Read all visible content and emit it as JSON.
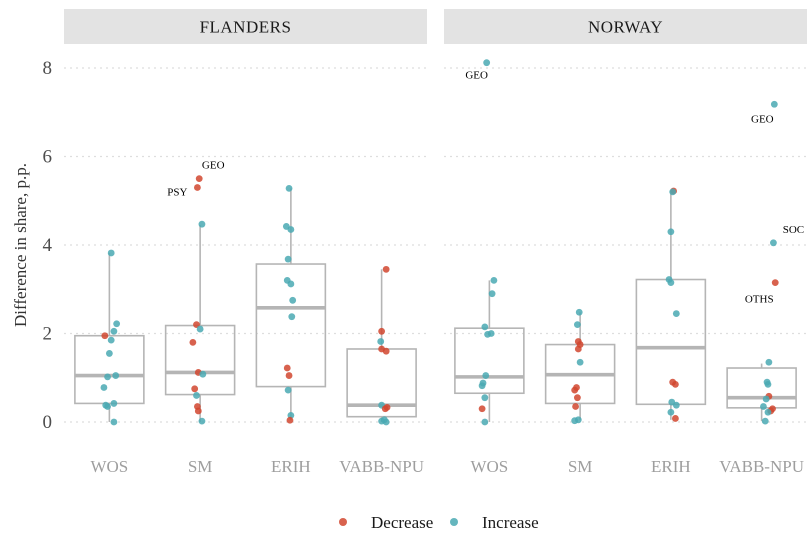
{
  "chart_data": {
    "type": "scatter",
    "ylabel": "Difference in share, p.p.",
    "xlabel": "",
    "ylim": [
      0,
      8.5
    ],
    "yticks": [
      0,
      2,
      4,
      6,
      8
    ],
    "categories": [
      "WOS",
      "SM",
      "ERIH",
      "VABB-NPU"
    ],
    "legend": {
      "position": "bottom",
      "entries": [
        {
          "label": "Decrease",
          "color": "#d1462f"
        },
        {
          "label": "Increase",
          "color": "#4aa9b3"
        }
      ]
    },
    "colors": {
      "Decrease": "#d1462f",
      "Increase": "#4aa9b3",
      "box": "#b5b5b5",
      "median": "#b5b5b5",
      "strip": "#e3e3e3",
      "grid": "#dedede"
    },
    "panels": [
      {
        "name": "FLANDERS",
        "boxes": [
          {
            "category": "WOS",
            "q1": 0.42,
            "median": 1.05,
            "q3": 1.95,
            "whisker_low": 0.0,
            "whisker_high": 3.82
          },
          {
            "category": "SM",
            "q1": 0.62,
            "median": 1.12,
            "q3": 2.18,
            "whisker_low": 0.0,
            "whisker_high": 4.45
          },
          {
            "category": "ERIH",
            "q1": 0.8,
            "median": 2.58,
            "q3": 3.57,
            "whisker_low": 0.04,
            "whisker_high": 5.28
          },
          {
            "category": "VABB-NPU",
            "q1": 0.12,
            "median": 0.38,
            "q3": 1.65,
            "whisker_low": 0.0,
            "whisker_high": 3.45
          }
        ],
        "points": [
          {
            "category": "WOS",
            "y": 3.82,
            "dx": 0.02,
            "group": "Increase"
          },
          {
            "category": "WOS",
            "y": 2.22,
            "dx": 0.08,
            "group": "Increase"
          },
          {
            "category": "WOS",
            "y": 2.05,
            "dx": 0.05,
            "group": "Increase"
          },
          {
            "category": "WOS",
            "y": 1.95,
            "dx": -0.05,
            "group": "Decrease"
          },
          {
            "category": "WOS",
            "y": 1.85,
            "dx": 0.02,
            "group": "Increase"
          },
          {
            "category": "WOS",
            "y": 1.55,
            "dx": 0.0,
            "group": "Increase"
          },
          {
            "category": "WOS",
            "y": 1.05,
            "dx": 0.07,
            "group": "Increase"
          },
          {
            "category": "WOS",
            "y": 1.02,
            "dx": -0.02,
            "group": "Increase"
          },
          {
            "category": "WOS",
            "y": 0.78,
            "dx": -0.06,
            "group": "Increase"
          },
          {
            "category": "WOS",
            "y": 0.42,
            "dx": 0.05,
            "group": "Increase"
          },
          {
            "category": "WOS",
            "y": 0.38,
            "dx": -0.04,
            "group": "Increase"
          },
          {
            "category": "WOS",
            "y": 0.35,
            "dx": -0.02,
            "group": "Increase"
          },
          {
            "category": "WOS",
            "y": 0.0,
            "dx": 0.05,
            "group": "Increase"
          },
          {
            "category": "SM",
            "y": 5.5,
            "dx": -0.01,
            "group": "Decrease",
            "label": "GEO"
          },
          {
            "category": "SM",
            "y": 5.3,
            "dx": -0.03,
            "group": "Decrease",
            "label": "PSY"
          },
          {
            "category": "SM",
            "y": 4.47,
            "dx": 0.02,
            "group": "Increase"
          },
          {
            "category": "SM",
            "y": 2.2,
            "dx": -0.04,
            "group": "Decrease"
          },
          {
            "category": "SM",
            "y": 2.1,
            "dx": 0.0,
            "group": "Increase"
          },
          {
            "category": "SM",
            "y": 1.8,
            "dx": -0.08,
            "group": "Decrease"
          },
          {
            "category": "SM",
            "y": 1.12,
            "dx": -0.02,
            "group": "Decrease"
          },
          {
            "category": "SM",
            "y": 1.08,
            "dx": 0.03,
            "group": "Increase"
          },
          {
            "category": "SM",
            "y": 0.75,
            "dx": -0.06,
            "group": "Decrease"
          },
          {
            "category": "SM",
            "y": 0.6,
            "dx": -0.04,
            "group": "Increase"
          },
          {
            "category": "SM",
            "y": 0.35,
            "dx": -0.03,
            "group": "Decrease"
          },
          {
            "category": "SM",
            "y": 0.25,
            "dx": -0.02,
            "group": "Decrease"
          },
          {
            "category": "SM",
            "y": 0.02,
            "dx": 0.02,
            "group": "Increase"
          },
          {
            "category": "ERIH",
            "y": 5.28,
            "dx": -0.02,
            "group": "Increase"
          },
          {
            "category": "ERIH",
            "y": 4.42,
            "dx": -0.05,
            "group": "Increase"
          },
          {
            "category": "ERIH",
            "y": 4.35,
            "dx": 0.0,
            "group": "Increase"
          },
          {
            "category": "ERIH",
            "y": 3.68,
            "dx": -0.03,
            "group": "Increase"
          },
          {
            "category": "ERIH",
            "y": 3.2,
            "dx": -0.04,
            "group": "Increase"
          },
          {
            "category": "ERIH",
            "y": 3.12,
            "dx": 0.0,
            "group": "Increase"
          },
          {
            "category": "ERIH",
            "y": 2.75,
            "dx": 0.02,
            "group": "Increase"
          },
          {
            "category": "ERIH",
            "y": 2.38,
            "dx": 0.01,
            "group": "Increase"
          },
          {
            "category": "ERIH",
            "y": 1.22,
            "dx": -0.04,
            "group": "Decrease"
          },
          {
            "category": "ERIH",
            "y": 1.05,
            "dx": -0.02,
            "group": "Decrease"
          },
          {
            "category": "ERIH",
            "y": 0.72,
            "dx": -0.03,
            "group": "Increase"
          },
          {
            "category": "ERIH",
            "y": 0.15,
            "dx": 0.0,
            "group": "Increase"
          },
          {
            "category": "ERIH",
            "y": 0.04,
            "dx": -0.01,
            "group": "Decrease"
          },
          {
            "category": "VABB-NPU",
            "y": 3.45,
            "dx": 0.05,
            "group": "Decrease"
          },
          {
            "category": "VABB-NPU",
            "y": 2.05,
            "dx": 0.0,
            "group": "Decrease"
          },
          {
            "category": "VABB-NPU",
            "y": 1.82,
            "dx": -0.01,
            "group": "Increase"
          },
          {
            "category": "VABB-NPU",
            "y": 1.65,
            "dx": 0.0,
            "group": "Decrease"
          },
          {
            "category": "VABB-NPU",
            "y": 1.6,
            "dx": 0.05,
            "group": "Decrease"
          },
          {
            "category": "VABB-NPU",
            "y": 0.38,
            "dx": 0.0,
            "group": "Increase"
          },
          {
            "category": "VABB-NPU",
            "y": 0.33,
            "dx": 0.06,
            "group": "Decrease"
          },
          {
            "category": "VABB-NPU",
            "y": 0.3,
            "dx": 0.04,
            "group": "Decrease"
          },
          {
            "category": "VABB-NPU",
            "y": 0.05,
            "dx": 0.03,
            "group": "Increase"
          },
          {
            "category": "VABB-NPU",
            "y": 0.02,
            "dx": 0.0,
            "group": "Increase"
          },
          {
            "category": "VABB-NPU",
            "y": 0.0,
            "dx": 0.05,
            "group": "Increase"
          }
        ]
      },
      {
        "name": "NORWAY",
        "boxes": [
          {
            "category": "WOS",
            "q1": 0.65,
            "median": 1.02,
            "q3": 2.12,
            "whisker_low": 0.0,
            "whisker_high": 3.2
          },
          {
            "category": "SM",
            "q1": 0.42,
            "median": 1.07,
            "q3": 1.75,
            "whisker_low": 0.05,
            "whisker_high": 2.48
          },
          {
            "category": "ERIH",
            "q1": 0.4,
            "median": 1.68,
            "q3": 3.22,
            "whisker_low": 0.05,
            "whisker_high": 5.22
          },
          {
            "category": "VABB-NPU",
            "q1": 0.32,
            "median": 0.55,
            "q3": 1.22,
            "whisker_low": 0.02,
            "whisker_high": 1.32
          }
        ],
        "points": [
          {
            "category": "WOS",
            "y": 8.12,
            "dx": -0.03,
            "group": "Increase",
            "label": "GEO"
          },
          {
            "category": "WOS",
            "y": 3.2,
            "dx": 0.05,
            "group": "Increase"
          },
          {
            "category": "WOS",
            "y": 2.9,
            "dx": 0.03,
            "group": "Increase"
          },
          {
            "category": "WOS",
            "y": 2.15,
            "dx": -0.05,
            "group": "Increase"
          },
          {
            "category": "WOS",
            "y": 2.0,
            "dx": 0.02,
            "group": "Increase"
          },
          {
            "category": "WOS",
            "y": 1.98,
            "dx": -0.02,
            "group": "Increase"
          },
          {
            "category": "WOS",
            "y": 1.05,
            "dx": -0.04,
            "group": "Increase"
          },
          {
            "category": "WOS",
            "y": 0.88,
            "dx": -0.07,
            "group": "Increase"
          },
          {
            "category": "WOS",
            "y": 0.82,
            "dx": -0.08,
            "group": "Increase"
          },
          {
            "category": "WOS",
            "y": 0.55,
            "dx": -0.05,
            "group": "Increase"
          },
          {
            "category": "WOS",
            "y": 0.3,
            "dx": -0.08,
            "group": "Decrease"
          },
          {
            "category": "WOS",
            "y": 0.0,
            "dx": -0.05,
            "group": "Increase"
          },
          {
            "category": "SM",
            "y": 2.48,
            "dx": -0.01,
            "group": "Increase"
          },
          {
            "category": "SM",
            "y": 2.2,
            "dx": -0.03,
            "group": "Increase"
          },
          {
            "category": "SM",
            "y": 1.82,
            "dx": -0.02,
            "group": "Decrease"
          },
          {
            "category": "SM",
            "y": 1.75,
            "dx": 0.0,
            "group": "Decrease"
          },
          {
            "category": "SM",
            "y": 1.65,
            "dx": -0.02,
            "group": "Decrease"
          },
          {
            "category": "SM",
            "y": 1.35,
            "dx": 0.0,
            "group": "Increase"
          },
          {
            "category": "SM",
            "y": 0.78,
            "dx": -0.04,
            "group": "Decrease"
          },
          {
            "category": "SM",
            "y": 0.72,
            "dx": -0.06,
            "group": "Decrease"
          },
          {
            "category": "SM",
            "y": 0.55,
            "dx": -0.03,
            "group": "Decrease"
          },
          {
            "category": "SM",
            "y": 0.35,
            "dx": -0.05,
            "group": "Decrease"
          },
          {
            "category": "SM",
            "y": 0.05,
            "dx": -0.02,
            "group": "Increase"
          },
          {
            "category": "SM",
            "y": 0.03,
            "dx": -0.06,
            "group": "Increase"
          },
          {
            "category": "ERIH",
            "y": 5.22,
            "dx": 0.03,
            "group": "Decrease"
          },
          {
            "category": "ERIH",
            "y": 5.2,
            "dx": 0.02,
            "group": "Increase"
          },
          {
            "category": "ERIH",
            "y": 4.3,
            "dx": 0.0,
            "group": "Increase"
          },
          {
            "category": "ERIH",
            "y": 3.22,
            "dx": -0.02,
            "group": "Increase"
          },
          {
            "category": "ERIH",
            "y": 3.15,
            "dx": 0.0,
            "group": "Increase"
          },
          {
            "category": "ERIH",
            "y": 2.45,
            "dx": 0.06,
            "group": "Increase"
          },
          {
            "category": "ERIH",
            "y": 0.9,
            "dx": 0.02,
            "group": "Decrease"
          },
          {
            "category": "ERIH",
            "y": 0.85,
            "dx": 0.05,
            "group": "Decrease"
          },
          {
            "category": "ERIH",
            "y": 0.45,
            "dx": 0.01,
            "group": "Increase"
          },
          {
            "category": "ERIH",
            "y": 0.38,
            "dx": 0.06,
            "group": "Increase"
          },
          {
            "category": "ERIH",
            "y": 0.22,
            "dx": 0.0,
            "group": "Increase"
          },
          {
            "category": "ERIH",
            "y": 0.08,
            "dx": 0.05,
            "group": "Decrease"
          },
          {
            "category": "VABB-NPU",
            "y": 7.18,
            "dx": 0.14,
            "group": "Increase",
            "label": "GEO"
          },
          {
            "category": "VABB-NPU",
            "y": 4.05,
            "dx": 0.13,
            "group": "Increase",
            "label": "SOC"
          },
          {
            "category": "VABB-NPU",
            "y": 3.15,
            "dx": 0.15,
            "group": "Decrease",
            "label": "OTHS"
          },
          {
            "category": "VABB-NPU",
            "y": 1.35,
            "dx": 0.08,
            "group": "Increase"
          },
          {
            "category": "VABB-NPU",
            "y": 0.9,
            "dx": 0.06,
            "group": "Increase"
          },
          {
            "category": "VABB-NPU",
            "y": 0.85,
            "dx": 0.07,
            "group": "Increase"
          },
          {
            "category": "VABB-NPU",
            "y": 0.58,
            "dx": 0.08,
            "group": "Decrease"
          },
          {
            "category": "VABB-NPU",
            "y": 0.52,
            "dx": 0.05,
            "group": "Increase"
          },
          {
            "category": "VABB-NPU",
            "y": 0.35,
            "dx": 0.02,
            "group": "Increase"
          },
          {
            "category": "VABB-NPU",
            "y": 0.3,
            "dx": 0.12,
            "group": "Decrease"
          },
          {
            "category": "VABB-NPU",
            "y": 0.25,
            "dx": 0.1,
            "group": "Decrease"
          },
          {
            "category": "VABB-NPU",
            "y": 0.22,
            "dx": 0.07,
            "group": "Increase"
          },
          {
            "category": "VABB-NPU",
            "y": 0.02,
            "dx": 0.04,
            "group": "Increase"
          }
        ]
      }
    ]
  }
}
